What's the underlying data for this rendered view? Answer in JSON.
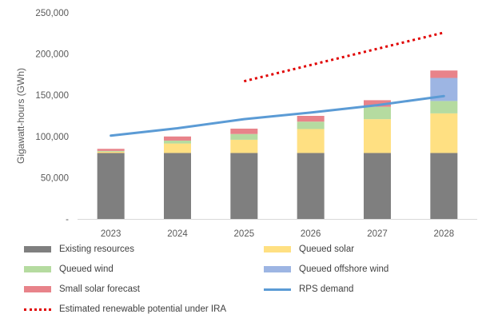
{
  "chart_data": {
    "type": "bar",
    "stacked": true,
    "categories": [
      "2023",
      "2024",
      "2025",
      "2026",
      "2027",
      "2028"
    ],
    "series": [
      {
        "name": "Existing resources",
        "color": "#7f7f7f",
        "values": [
          80000,
          80000,
          80000,
          80000,
          80000,
          80000
        ]
      },
      {
        "name": "Queued solar",
        "color": "#ffe082",
        "values": [
          1500,
          11500,
          16000,
          29000,
          41000,
          48000
        ]
      },
      {
        "name": "Queued wind",
        "color": "#b5dba0",
        "values": [
          1000,
          3500,
          7000,
          9000,
          15000,
          15000
        ]
      },
      {
        "name": "Queued offshore wind",
        "color": "#9db5e3",
        "values": [
          0,
          0,
          0,
          0,
          0,
          28000
        ]
      },
      {
        "name": "Small solar forecast",
        "color": "#e8838a",
        "values": [
          2500,
          5000,
          6500,
          7000,
          8000,
          9000
        ]
      }
    ],
    "lines": [
      {
        "name": "RPS demand",
        "color": "#5b9bd5",
        "style": "solid",
        "values": [
          101000,
          110000,
          121000,
          129000,
          138000,
          149000
        ]
      },
      {
        "name": "Estimated renewable potential under IRA",
        "color": "#e00000",
        "style": "dotted",
        "values": [
          null,
          null,
          167000,
          null,
          null,
          226000
        ]
      }
    ],
    "ylabel": "Gigawatt-hours (GWh)",
    "ylim": [
      0,
      250000
    ],
    "yticks": [
      0,
      50000,
      100000,
      150000,
      200000,
      250000
    ],
    "ytick_labels": [
      "-",
      "50,000",
      "100,000",
      "150,000",
      "200,000",
      "250,000"
    ],
    "grid": false,
    "legend_placement": "bottom",
    "legend_order": [
      "Existing resources",
      "Queued solar",
      "Queued wind",
      "Queued offshore wind",
      "Small solar forecast",
      "RPS demand",
      "Estimated renewable potential under IRA"
    ]
  }
}
